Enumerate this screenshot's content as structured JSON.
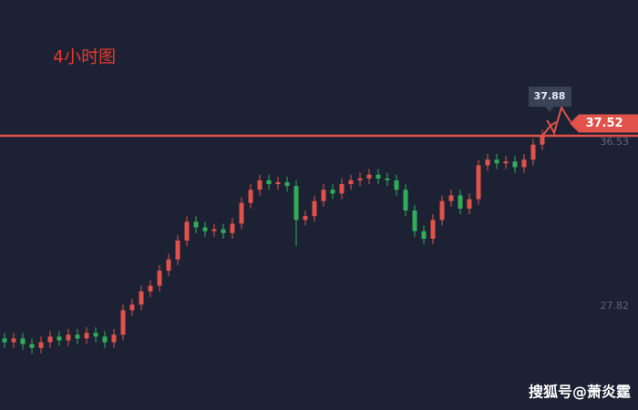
{
  "chart_data": {
    "type": "candlestick",
    "title": "4小时图",
    "up_color": "#e0524a",
    "down_color": "#2fae5a",
    "open": [
      26.1,
      25.9,
      26.1,
      25.8,
      25.6,
      25.9,
      26.2,
      26.0,
      26.3,
      26.1,
      26.4,
      26.2,
      25.9,
      26.3,
      27.6,
      27.9,
      28.6,
      28.9,
      29.7,
      30.3,
      31.3,
      32.3,
      32.0,
      31.8,
      31.9,
      31.7,
      32.2,
      33.3,
      34.0,
      34.5,
      34.3,
      34.4,
      34.2,
      32.4,
      32.6,
      33.4,
      34.0,
      33.8,
      34.3,
      34.5,
      34.6,
      34.8,
      34.6,
      34.5,
      34.0,
      32.9,
      31.8,
      31.4,
      32.4,
      33.4,
      33.7,
      33.0,
      33.5,
      35.3,
      35.6,
      35.4,
      35.5,
      35.2,
      35.6,
      36.4
    ],
    "high": [
      26.4,
      26.4,
      26.4,
      26.1,
      26.2,
      26.5,
      26.5,
      26.6,
      26.6,
      26.7,
      26.7,
      26.5,
      26.6,
      27.9,
      28.2,
      28.9,
      29.2,
      30.0,
      30.6,
      31.6,
      32.6,
      32.6,
      32.3,
      32.2,
      32.2,
      32.5,
      33.6,
      34.3,
      34.8,
      34.8,
      34.7,
      34.7,
      34.5,
      32.9,
      33.7,
      34.3,
      34.3,
      34.6,
      34.8,
      34.9,
      35.1,
      35.1,
      34.9,
      34.8,
      34.3,
      33.2,
      32.1,
      32.7,
      33.7,
      34.0,
      34.0,
      33.8,
      35.6,
      35.9,
      35.9,
      35.8,
      35.8,
      35.9,
      36.7,
      37.2
    ],
    "low": [
      25.6,
      25.6,
      25.5,
      25.3,
      25.3,
      25.6,
      25.7,
      25.7,
      25.8,
      25.8,
      25.9,
      25.6,
      25.6,
      26.0,
      27.3,
      27.6,
      28.3,
      28.6,
      29.4,
      30.0,
      31.0,
      31.7,
      31.5,
      31.5,
      31.4,
      31.4,
      31.9,
      33.0,
      33.7,
      34.0,
      34.0,
      33.9,
      31.0,
      32.1,
      32.3,
      33.1,
      33.5,
      33.5,
      34.0,
      34.2,
      34.3,
      34.3,
      34.2,
      33.7,
      32.6,
      31.5,
      31.1,
      31.1,
      32.1,
      33.1,
      32.7,
      32.7,
      33.2,
      35.0,
      35.1,
      35.1,
      34.9,
      34.9,
      35.3,
      36.1
    ],
    "close": [
      25.9,
      26.1,
      25.8,
      25.6,
      25.9,
      26.2,
      26.0,
      26.3,
      26.1,
      26.4,
      26.2,
      25.9,
      26.3,
      27.6,
      27.9,
      28.6,
      28.9,
      29.7,
      30.3,
      31.3,
      32.3,
      32.0,
      31.8,
      31.9,
      31.7,
      32.2,
      33.3,
      34.0,
      34.5,
      34.3,
      34.4,
      34.2,
      32.4,
      32.6,
      33.4,
      34.0,
      33.8,
      34.3,
      34.5,
      34.6,
      34.8,
      34.6,
      34.5,
      34.0,
      32.9,
      31.8,
      31.4,
      32.4,
      33.4,
      33.7,
      33.0,
      33.5,
      35.3,
      35.6,
      35.4,
      35.5,
      35.2,
      35.6,
      36.4,
      36.9
    ],
    "ylim": [
      22.3,
      44.08
    ],
    "yticks": [
      27.82,
      36.53
    ],
    "current_price": 37.52,
    "high_marker": 37.88,
    "drawn_level": 36.87,
    "level_color": "#e0524a",
    "watermark": "搜狐号@萧炎霆"
  }
}
